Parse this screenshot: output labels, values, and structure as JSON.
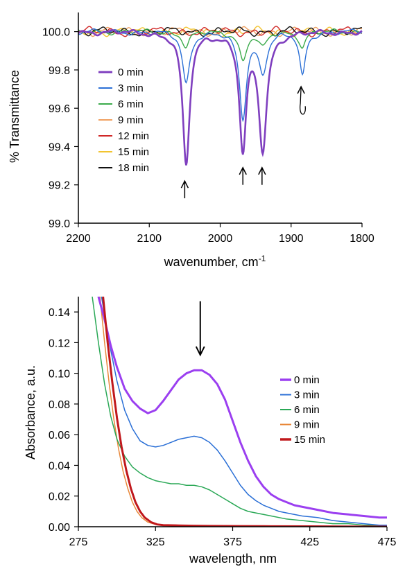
{
  "chart_data": [
    {
      "type": "line",
      "xlabel": "wavenumber, cm",
      "xlabel_sup": "-1",
      "ylabel": "% Transmittance",
      "xlim": [
        2200,
        1800
      ],
      "ylim": [
        99.0,
        100.1
      ],
      "x_reversed": true,
      "xticks": [
        "2200",
        "2100",
        "2000",
        "1900",
        "1800"
      ],
      "yticks": [
        "99.0",
        "99.2",
        "99.4",
        "99.6",
        "99.8",
        "100.0"
      ],
      "legend_position": "left",
      "grid": false,
      "series": [
        {
          "name": "0 min",
          "color": "#7f3fbf"
        },
        {
          "name": "3 min",
          "color": "#2a6fd6"
        },
        {
          "name": "6 min",
          "color": "#3aaa4a"
        },
        {
          "name": "9 min",
          "color": "#f0a060"
        },
        {
          "name": "12 min",
          "color": "#d02828"
        },
        {
          "name": "15 min",
          "color": "#f2c430"
        },
        {
          "name": "18 min",
          "color": "#111111"
        }
      ],
      "peaks": [
        {
          "x": 2048,
          "values": [
            99.3,
            99.73,
            99.92,
            100.0,
            100.0,
            100.0,
            100.0
          ],
          "width": 6
        },
        {
          "x": 1968,
          "values": [
            99.4,
            99.56,
            99.85,
            100.0,
            100.0,
            100.0,
            100.0
          ],
          "width": 6
        },
        {
          "x": 1940,
          "values": [
            99.4,
            99.8,
            99.92,
            100.0,
            100.0,
            100.0,
            100.0
          ],
          "width": 7
        },
        {
          "x": 1884,
          "values": [
            100.0,
            99.77,
            99.92,
            100.0,
            100.0,
            100.0,
            100.0
          ],
          "width": 5
        }
      ],
      "annotations": [
        {
          "type": "arrow-up",
          "x": 2050,
          "y_from": 99.13,
          "y_to": 99.22
        },
        {
          "type": "arrow-up",
          "x": 1968,
          "y_from": 99.2,
          "y_to": 99.29
        },
        {
          "type": "arrow-up",
          "x": 1941,
          "y_from": 99.2,
          "y_to": 99.29
        },
        {
          "type": "curved-arrow",
          "x": 1884,
          "y_from": 99.56,
          "y_to": 99.72
        }
      ]
    },
    {
      "type": "line",
      "xlabel": "wavelength, nm",
      "ylabel": "Absorbance, a.u.",
      "xlim": [
        275,
        475
      ],
      "ylim": [
        0,
        0.15
      ],
      "xticks": [
        "275",
        "325",
        "375",
        "425",
        "475"
      ],
      "yticks": [
        "0.00",
        "0.02",
        "0.04",
        "0.06",
        "0.08",
        "0.10",
        "0.12",
        "0.14"
      ],
      "legend_position": "right",
      "grid": false,
      "series": [
        {
          "name": "0 min",
          "color": "#9b3ff0",
          "width": 3,
          "x": [
            288,
            292,
            296,
            300,
            305,
            310,
            315,
            320,
            325,
            330,
            335,
            340,
            345,
            350,
            355,
            360,
            365,
            370,
            375,
            380,
            385,
            390,
            395,
            400,
            405,
            410,
            415,
            420,
            430,
            440,
            450,
            460,
            470,
            475
          ],
          "y": [
            0.15,
            0.135,
            0.118,
            0.104,
            0.09,
            0.082,
            0.077,
            0.074,
            0.076,
            0.082,
            0.089,
            0.096,
            0.1,
            0.102,
            0.102,
            0.099,
            0.093,
            0.083,
            0.069,
            0.055,
            0.043,
            0.033,
            0.026,
            0.021,
            0.018,
            0.016,
            0.014,
            0.013,
            0.011,
            0.009,
            0.008,
            0.007,
            0.006,
            0.006
          ]
        },
        {
          "name": "3 min",
          "color": "#2a6fd6",
          "width": 1.5,
          "x": [
            290,
            295,
            300,
            305,
            310,
            315,
            320,
            325,
            330,
            335,
            340,
            345,
            350,
            355,
            360,
            365,
            370,
            375,
            380,
            385,
            390,
            395,
            400,
            405,
            410,
            420,
            430,
            440,
            450,
            460,
            470,
            475
          ],
          "y": [
            0.15,
            0.12,
            0.095,
            0.076,
            0.064,
            0.056,
            0.053,
            0.052,
            0.053,
            0.055,
            0.057,
            0.058,
            0.059,
            0.058,
            0.055,
            0.05,
            0.043,
            0.035,
            0.027,
            0.021,
            0.017,
            0.014,
            0.012,
            0.01,
            0.009,
            0.007,
            0.006,
            0.004,
            0.003,
            0.002,
            0.001,
            0.001
          ]
        },
        {
          "name": "6 min",
          "color": "#2aa856",
          "width": 1.5,
          "x": [
            284,
            288,
            292,
            296,
            300,
            305,
            310,
            315,
            320,
            325,
            330,
            335,
            340,
            345,
            350,
            355,
            360,
            365,
            370,
            375,
            380,
            385,
            390,
            400,
            410,
            420,
            430,
            440,
            450,
            460,
            475
          ],
          "y": [
            0.15,
            0.12,
            0.093,
            0.072,
            0.057,
            0.046,
            0.039,
            0.035,
            0.032,
            0.03,
            0.029,
            0.028,
            0.028,
            0.027,
            0.027,
            0.026,
            0.024,
            0.021,
            0.018,
            0.015,
            0.012,
            0.01,
            0.009,
            0.007,
            0.005,
            0.004,
            0.003,
            0.002,
            0.002,
            0.001,
            0.001
          ]
        },
        {
          "name": "9 min",
          "color": "#e8883a",
          "width": 1.5,
          "x": [
            289,
            292,
            295,
            298,
            301,
            304,
            307,
            310,
            313,
            316,
            320,
            325,
            330,
            340,
            350,
            360,
            380,
            400,
            425,
            450,
            475
          ],
          "y": [
            0.15,
            0.12,
            0.093,
            0.07,
            0.051,
            0.036,
            0.025,
            0.016,
            0.01,
            0.006,
            0.003,
            0.0015,
            0.001,
            0.0008,
            0.0006,
            0.0005,
            0.0004,
            0.0003,
            0.0002,
            0.0001,
            0.0
          ]
        },
        {
          "name": "15 min",
          "color": "#c0181c",
          "width": 3,
          "x": [
            291,
            294,
            297,
            300,
            303,
            306,
            309,
            312,
            315,
            318,
            322,
            326,
            330,
            340,
            350,
            360,
            380,
            400,
            425,
            450,
            475
          ],
          "y": [
            0.15,
            0.12,
            0.094,
            0.071,
            0.052,
            0.037,
            0.025,
            0.016,
            0.01,
            0.006,
            0.003,
            0.0015,
            0.001,
            0.0008,
            0.0006,
            0.0005,
            0.0004,
            0.0003,
            0.0002,
            0.0001,
            0.0
          ]
        }
      ],
      "annotations": [
        {
          "type": "arrow-down",
          "x": 354,
          "y_from": 0.147,
          "y_to": 0.112
        }
      ]
    }
  ]
}
